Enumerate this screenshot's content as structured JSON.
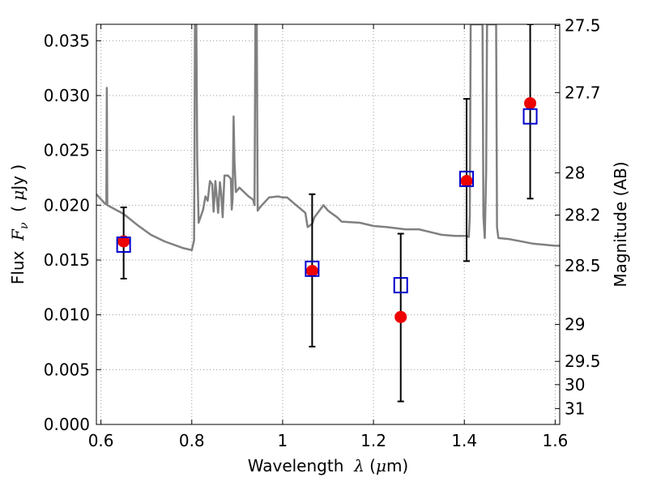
{
  "chart_data": {
    "type": "scatter",
    "xlabel": {
      "prefix": "Wavelength  ",
      "symbol": "λ",
      "unit_open": " (",
      "unit_mu": "μ",
      "unit_rest": "m)"
    },
    "ylabel": {
      "prefix": "Flux  ",
      "symbol": "F",
      "sub": "ν",
      "unit_open": "  ( ",
      "unit_mu": "μ",
      "unit_rest": "Jy )"
    },
    "y2label": "Magnitude (AB)",
    "xlim": [
      0.59,
      1.61
    ],
    "ylim": [
      0.0,
      0.0365
    ],
    "grid": true,
    "xticks": [
      {
        "value": 0.6,
        "label": "0.6"
      },
      {
        "value": 0.8,
        "label": "0.8"
      },
      {
        "value": 1.0,
        "label": "1"
      },
      {
        "value": 1.2,
        "label": "1.2"
      },
      {
        "value": 1.4,
        "label": "1.4"
      },
      {
        "value": 1.6,
        "label": "1.6"
      }
    ],
    "yticks": [
      {
        "value": 0.0,
        "label": "0.000"
      },
      {
        "value": 0.005,
        "label": "0.005"
      },
      {
        "value": 0.01,
        "label": "0.010"
      },
      {
        "value": 0.015,
        "label": "0.015"
      },
      {
        "value": 0.02,
        "label": "0.020"
      },
      {
        "value": 0.025,
        "label": "0.025"
      },
      {
        "value": 0.03,
        "label": "0.030"
      },
      {
        "value": 0.035,
        "label": "0.035"
      }
    ],
    "y2ticks": [
      {
        "label": "27.5",
        "flux": 0.03639
      },
      {
        "label": "27.7",
        "flux": 0.03027
      },
      {
        "label": "28",
        "flux": 0.02296
      },
      {
        "label": "28.2",
        "flux": 0.0191
      },
      {
        "label": "28.5",
        "flux": 0.01449
      },
      {
        "label": "29",
        "flux": 0.00912
      },
      {
        "label": "29.5",
        "flux": 0.00575
      },
      {
        "label": "30",
        "flux": 0.00363
      },
      {
        "label": "31",
        "flux": 0.00145
      }
    ],
    "colors": {
      "model": "#808080",
      "observed": "#ee0000",
      "model_phot": "#0000cc",
      "errorbar": "#000000",
      "grid": "#999999"
    },
    "series": [
      {
        "kind": "line",
        "points": [
          [
            0.59,
            0.021
          ],
          [
            0.61,
            0.0201
          ],
          [
            0.612,
            0.0201
          ],
          [
            0.613,
            0.0307
          ],
          [
            0.614,
            0.02
          ],
          [
            0.65,
            0.0192
          ],
          [
            0.68,
            0.0182
          ],
          [
            0.71,
            0.0173
          ],
          [
            0.74,
            0.0167
          ],
          [
            0.78,
            0.0161
          ],
          [
            0.8,
            0.0159
          ],
          [
            0.805,
            0.0168
          ],
          [
            0.806,
            0.024
          ],
          [
            0.807,
            0.0365
          ],
          [
            0.81,
            0.0365
          ],
          [
            0.812,
            0.024
          ],
          [
            0.815,
            0.0184
          ],
          [
            0.825,
            0.0196
          ],
          [
            0.83,
            0.0208
          ],
          [
            0.835,
            0.0204
          ],
          [
            0.84,
            0.0222
          ],
          [
            0.845,
            0.0219
          ],
          [
            0.848,
            0.0194
          ],
          [
            0.852,
            0.0222
          ],
          [
            0.858,
            0.0193
          ],
          [
            0.862,
            0.0221
          ],
          [
            0.865,
            0.021
          ],
          [
            0.868,
            0.0189
          ],
          [
            0.872,
            0.0227
          ],
          [
            0.88,
            0.0227
          ],
          [
            0.886,
            0.0224
          ],
          [
            0.888,
            0.0196
          ],
          [
            0.89,
            0.0206
          ],
          [
            0.892,
            0.0281
          ],
          [
            0.894,
            0.024
          ],
          [
            0.897,
            0.0212
          ],
          [
            0.905,
            0.0216
          ],
          [
            0.925,
            0.0208
          ],
          [
            0.935,
            0.0205
          ],
          [
            0.938,
            0.02
          ],
          [
            0.94,
            0.0365
          ],
          [
            0.943,
            0.0365
          ],
          [
            0.945,
            0.0195
          ],
          [
            0.95,
            0.0198
          ],
          [
            0.97,
            0.0207
          ],
          [
            0.99,
            0.0208
          ],
          [
            1.0,
            0.0207
          ],
          [
            1.01,
            0.0207
          ],
          [
            1.03,
            0.02
          ],
          [
            1.05,
            0.0193
          ],
          [
            1.055,
            0.018
          ],
          [
            1.065,
            0.0183
          ],
          [
            1.07,
            0.0189
          ],
          [
            1.09,
            0.02
          ],
          [
            1.1,
            0.0195
          ],
          [
            1.12,
            0.0189
          ],
          [
            1.13,
            0.0185
          ],
          [
            1.17,
            0.0184
          ],
          [
            1.2,
            0.0181
          ],
          [
            1.23,
            0.018
          ],
          [
            1.27,
            0.0178
          ],
          [
            1.3,
            0.0178
          ],
          [
            1.32,
            0.0176
          ],
          [
            1.35,
            0.0173
          ],
          [
            1.38,
            0.0172
          ],
          [
            1.405,
            0.0172
          ],
          [
            1.41,
            0.0171
          ],
          [
            1.412,
            0.019
          ],
          [
            1.414,
            0.0365
          ],
          [
            1.44,
            0.0365
          ],
          [
            1.442,
            0.019
          ],
          [
            1.445,
            0.017
          ],
          [
            1.448,
            0.023
          ],
          [
            1.45,
            0.0365
          ],
          [
            1.47,
            0.0365
          ],
          [
            1.472,
            0.018
          ],
          [
            1.475,
            0.017
          ],
          [
            1.5,
            0.0169
          ],
          [
            1.55,
            0.0165
          ],
          [
            1.6,
            0.0163
          ],
          [
            1.61,
            0.0163
          ]
        ]
      },
      {
        "kind": "errorbar_points",
        "points": [
          {
            "x": 0.65,
            "y": 0.0167,
            "yerr_low": 0.0133,
            "yerr_high": 0.0198
          },
          {
            "x": 1.065,
            "y": 0.014,
            "yerr_low": 0.0071,
            "yerr_high": 0.021
          },
          {
            "x": 1.26,
            "y": 0.0098,
            "yerr_low": 0.0021,
            "yerr_high": 0.0174
          },
          {
            "x": 1.405,
            "y": 0.0222,
            "yerr_low": 0.0149,
            "yerr_high": 0.0297
          },
          {
            "x": 1.545,
            "y": 0.0293,
            "yerr_low": 0.0206,
            "yerr_high": 0.0365
          }
        ]
      },
      {
        "kind": "squares",
        "points": [
          {
            "x": 0.65,
            "y": 0.0164
          },
          {
            "x": 1.065,
            "y": 0.0142
          },
          {
            "x": 1.26,
            "y": 0.0127
          },
          {
            "x": 1.405,
            "y": 0.0224
          },
          {
            "x": 1.545,
            "y": 0.0281
          }
        ]
      }
    ]
  }
}
